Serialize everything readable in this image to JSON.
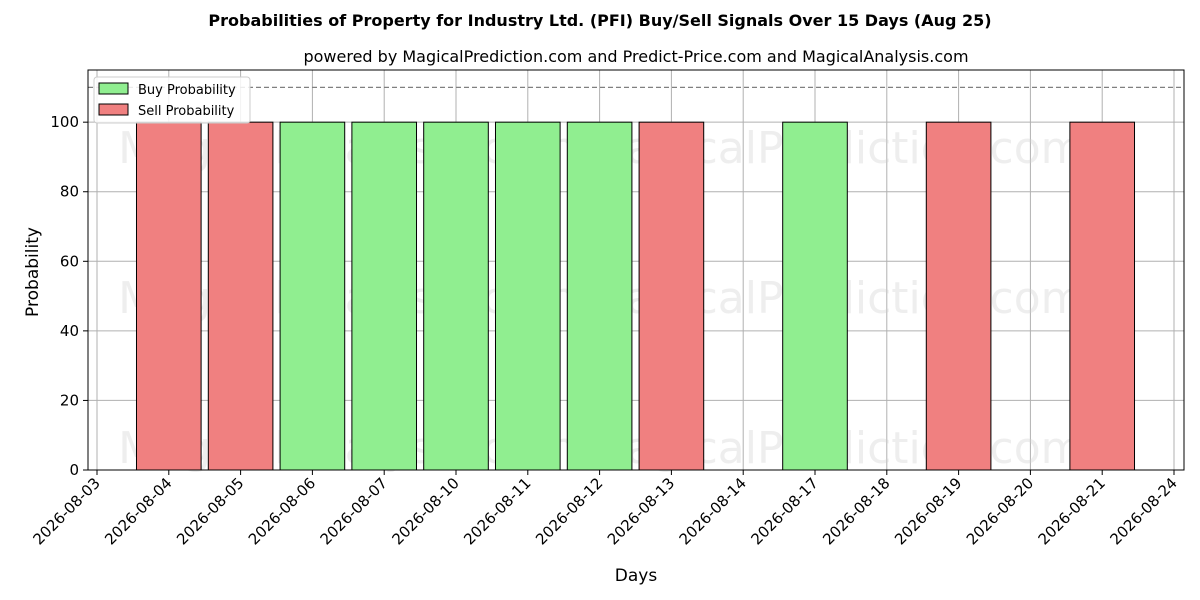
{
  "chart_data": {
    "type": "bar",
    "title": "Probabilities of Property for Industry Ltd. (PFI) Buy/Sell Signals Over 15 Days (Aug 25)",
    "subtitle": "powered by MagicalPrediction.com and Predict-Price.com and MagicalAnalysis.com",
    "xlabel": "Days",
    "ylabel": "Probability",
    "ylim": [
      0,
      115
    ],
    "yticks": [
      0,
      20,
      40,
      60,
      80,
      100
    ],
    "x_ticks": [
      "2026-08-03",
      "2026-08-04",
      "2026-08-05",
      "2026-08-06",
      "2026-08-07",
      "2026-08-10",
      "2026-08-11",
      "2026-08-12",
      "2026-08-13",
      "2026-08-14",
      "2026-08-17",
      "2026-08-18",
      "2026-08-19",
      "2026-08-20",
      "2026-08-21",
      "2026-08-24"
    ],
    "threshold_line": 110,
    "grid": true,
    "legend_position": "top-left",
    "series": [
      {
        "name": "Buy Probability",
        "color": "#90ee90",
        "points": [
          {
            "date": "2026-08-06",
            "value": 100
          },
          {
            "date": "2026-08-07",
            "value": 100
          },
          {
            "date": "2026-08-10",
            "value": 100
          },
          {
            "date": "2026-08-11",
            "value": 100
          },
          {
            "date": "2026-08-12",
            "value": 100
          },
          {
            "date": "2026-08-17",
            "value": 100
          }
        ]
      },
      {
        "name": "Sell Probability",
        "color": "#f08080",
        "points": [
          {
            "date": "2026-08-04",
            "value": 100
          },
          {
            "date": "2026-08-05",
            "value": 100
          },
          {
            "date": "2026-08-13",
            "value": 100
          },
          {
            "date": "2026-08-19",
            "value": 100
          },
          {
            "date": "2026-08-21",
            "value": 100
          }
        ]
      }
    ]
  },
  "watermarks": [
    "MagicalAnalysis.com",
    "MagicalPrediction.com"
  ]
}
